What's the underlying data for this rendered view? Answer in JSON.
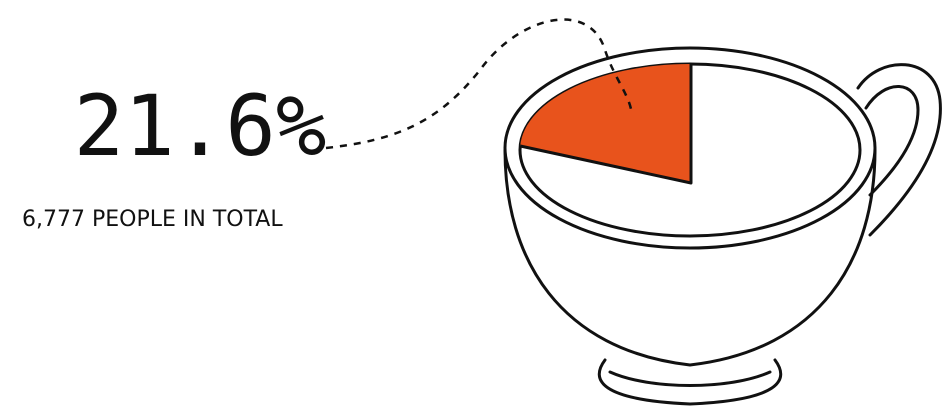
{
  "chart_data": {
    "type": "pie",
    "values": [
      21.6
    ],
    "value_labels": [
      "21.6%"
    ],
    "color": "#e8531c",
    "annotation": "6,777 PEOPLE IN TOTAL"
  }
}
